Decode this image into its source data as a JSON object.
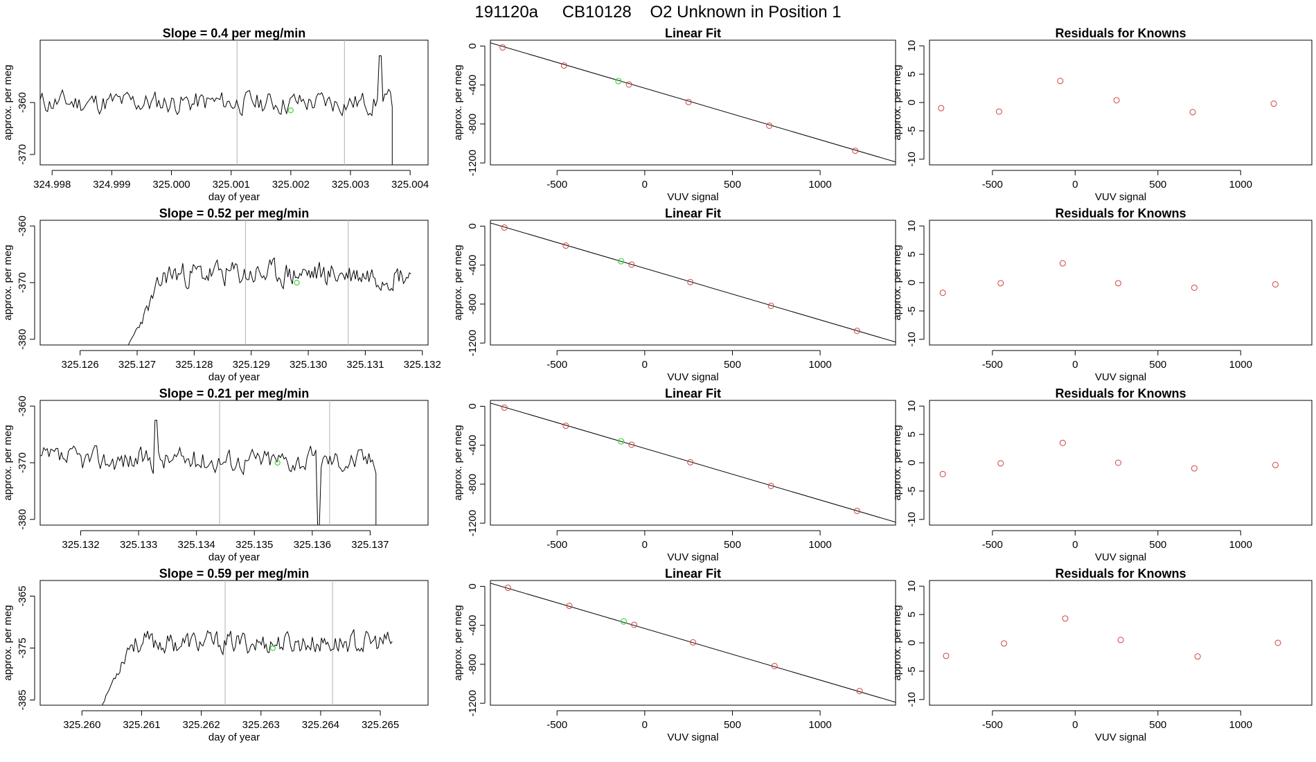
{
  "title": {
    "run_id": "191120a",
    "cylinder": "CB10128",
    "description": "O2 Unknown in Position  1"
  },
  "chart_data": [
    {
      "type": "line",
      "title": "Slope =  0.4  per meg/min",
      "xlabel": "day of year",
      "ylabel": "approx. per meg",
      "xlim": [
        324.9978,
        325.0043
      ],
      "ylim": [
        -372,
        -348
      ],
      "x_ticks": [
        324.998,
        324.999,
        325.0,
        325.001,
        325.002,
        325.003,
        325.004
      ],
      "x_tick_labels": [
        "324.998",
        "324.999",
        "325.000",
        "325.001",
        "325.002",
        "325.003",
        "325.004"
      ],
      "y_ticks": [
        -360,
        -370
      ],
      "y_tick_labels": [
        "-360",
        "-370"
      ],
      "vlines": [
        325.0011,
        325.0029
      ],
      "highlight_point": {
        "x": 325.002,
        "y": -361.5
      },
      "trace_start": 324.9978,
      "trace_end": 325.0037,
      "trace_mean": -360,
      "trace_noise": 2.5,
      "trace_seed": 11,
      "spikes": [
        {
          "x": 325.0035,
          "y": -351
        }
      ],
      "tail_drop": {
        "x": 325.0037,
        "y": -373
      },
      "rise": null
    },
    {
      "type": "scatter",
      "title": "Linear Fit",
      "xlabel": "VUV signal",
      "ylabel": "approx. per meg",
      "xlim": [
        -880,
        1430
      ],
      "ylim": [
        -1220,
        60
      ],
      "x_ticks": [
        -500,
        0,
        500,
        1000
      ],
      "x_tick_labels": [
        "-500",
        "0",
        "500",
        "1000"
      ],
      "y_ticks": [
        0,
        -400,
        -800,
        -1200
      ],
      "y_tick_labels": [
        "0",
        "-400",
        "-800",
        "-1200"
      ],
      "fit_line": {
        "x": [
          -880,
          1430
        ],
        "y": [
          33,
          -1190
        ]
      },
      "known_points": {
        "x": [
          -810,
          -460,
          -90,
          250,
          710,
          1200
        ],
        "y": [
          -15,
          -200,
          -395,
          -575,
          -818,
          -1075
        ]
      },
      "unknown_point": {
        "x": -150,
        "y": -360
      }
    },
    {
      "type": "scatter",
      "title": "Residuals for Knowns",
      "xlabel": "VUV signal",
      "ylabel": "approx. per meg",
      "xlim": [
        -880,
        1430
      ],
      "ylim": [
        -11,
        11
      ],
      "x_ticks": [
        -500,
        0,
        500,
        1000
      ],
      "x_tick_labels": [
        "-500",
        "0",
        "500",
        "1000"
      ],
      "y_ticks": [
        10,
        5,
        0,
        -5,
        -10
      ],
      "y_tick_labels": [
        "10",
        "5",
        "0",
        "-5",
        "-10"
      ],
      "residual_points": {
        "x": [
          -810,
          -460,
          -90,
          250,
          710,
          1200
        ],
        "y": [
          -1,
          -1.6,
          3.8,
          0.4,
          -1.7,
          -0.2
        ]
      }
    },
    {
      "type": "line",
      "title": "Slope =  0.52  per meg/min",
      "xlabel": "day of year",
      "ylabel": "approx. per meg",
      "xlim": [
        325.1253,
        325.1321
      ],
      "ylim": [
        -381,
        -359
      ],
      "x_ticks": [
        325.126,
        325.127,
        325.128,
        325.129,
        325.13,
        325.131,
        325.132
      ],
      "x_tick_labels": [
        "325.126",
        "325.127",
        "325.128",
        "325.129",
        "325.130",
        "325.131",
        "325.132"
      ],
      "y_ticks": [
        -360,
        -370,
        -380
      ],
      "y_tick_labels": [
        "-360",
        "-370",
        "-380"
      ],
      "vlines": [
        325.1289,
        325.1307
      ],
      "highlight_point": {
        "x": 325.1298,
        "y": -370
      },
      "trace_start": 325.1268,
      "trace_end": 325.1318,
      "trace_mean": -368.5,
      "trace_noise": 2.6,
      "trace_seed": 23,
      "spikes": [],
      "tail_drop": null,
      "rise": {
        "x_end": 325.1275,
        "y_start": -382
      }
    },
    {
      "type": "scatter",
      "title": "Linear Fit",
      "xlabel": "VUV signal",
      "ylabel": "approx. per meg",
      "xlim": [
        -880,
        1430
      ],
      "ylim": [
        -1220,
        60
      ],
      "x_ticks": [
        -500,
        0,
        500,
        1000
      ],
      "x_tick_labels": [
        "-500",
        "0",
        "500",
        "1000"
      ],
      "y_ticks": [
        0,
        -400,
        -800,
        -1200
      ],
      "y_tick_labels": [
        "0",
        "-400",
        "-800",
        "-1200"
      ],
      "fit_line": {
        "x": [
          -880,
          1430
        ],
        "y": [
          33,
          -1190
        ]
      },
      "known_points": {
        "x": [
          -800,
          -450,
          -75,
          260,
          720,
          1210
        ],
        "y": [
          -15,
          -200,
          -395,
          -575,
          -818,
          -1075
        ]
      },
      "unknown_point": {
        "x": -135,
        "y": -360
      }
    },
    {
      "type": "scatter",
      "title": "Residuals for Knowns",
      "xlabel": "VUV signal",
      "ylabel": "approx. per meg",
      "xlim": [
        -880,
        1430
      ],
      "ylim": [
        -11,
        11
      ],
      "x_ticks": [
        -500,
        0,
        500,
        1000
      ],
      "x_tick_labels": [
        "-500",
        "0",
        "500",
        "1000"
      ],
      "y_ticks": [
        10,
        5,
        0,
        -5,
        -10
      ],
      "y_tick_labels": [
        "10",
        "5",
        "0",
        "-5",
        "-10"
      ],
      "residual_points": {
        "x": [
          -800,
          -450,
          -75,
          260,
          720,
          1210
        ],
        "y": [
          -1.8,
          -0.1,
          3.4,
          -0.1,
          -0.9,
          -0.3
        ]
      }
    },
    {
      "type": "line",
      "title": "Slope =  0.21  per meg/min",
      "xlabel": "day of year",
      "ylabel": "approx. per meg",
      "xlim": [
        325.1313,
        325.138
      ],
      "ylim": [
        -381,
        -359
      ],
      "x_ticks": [
        325.132,
        325.133,
        325.134,
        325.135,
        325.136,
        325.137
      ],
      "x_tick_labels": [
        "325.132",
        "325.133",
        "325.134",
        "325.135",
        "325.136",
        "325.137"
      ],
      "y_ticks": [
        -360,
        -370,
        -380
      ],
      "y_tick_labels": [
        "-360",
        "-370",
        "-380"
      ],
      "vlines": [
        325.1344,
        325.1363
      ],
      "highlight_point": {
        "x": 325.1354,
        "y": -370
      },
      "trace_start": 325.1313,
      "trace_end": 325.1371,
      "trace_mean": -369.5,
      "trace_noise": 2.4,
      "trace_seed": 37,
      "spikes": [
        {
          "x": 325.1333,
          "y": -362.5
        },
        {
          "x": 325.1361,
          "y": -381
        }
      ],
      "tail_drop": {
        "x": 325.1371,
        "y": -382
      },
      "rise": null
    },
    {
      "type": "scatter",
      "title": "Linear Fit",
      "xlabel": "VUV signal",
      "ylabel": "approx. per meg",
      "xlim": [
        -880,
        1430
      ],
      "ylim": [
        -1220,
        60
      ],
      "x_ticks": [
        -500,
        0,
        500,
        1000
      ],
      "x_tick_labels": [
        "-500",
        "0",
        "500",
        "1000"
      ],
      "y_ticks": [
        0,
        -400,
        -800,
        -1200
      ],
      "y_tick_labels": [
        "0",
        "-400",
        "-800",
        "-1200"
      ],
      "fit_line": {
        "x": [
          -880,
          1430
        ],
        "y": [
          33,
          -1190
        ]
      },
      "known_points": {
        "x": [
          -800,
          -450,
          -75,
          260,
          720,
          1210
        ],
        "y": [
          -15,
          -200,
          -395,
          -575,
          -818,
          -1075
        ]
      },
      "unknown_point": {
        "x": -135,
        "y": -360
      }
    },
    {
      "type": "scatter",
      "title": "Residuals for Knowns",
      "xlabel": "VUV signal",
      "ylabel": "approx. per meg",
      "xlim": [
        -880,
        1430
      ],
      "ylim": [
        -11,
        11
      ],
      "x_ticks": [
        -500,
        0,
        500,
        1000
      ],
      "x_tick_labels": [
        "-500",
        "0",
        "500",
        "1000"
      ],
      "y_ticks": [
        10,
        5,
        0,
        -5,
        -10
      ],
      "y_tick_labels": [
        "10",
        "5",
        "0",
        "-5",
        "-10"
      ],
      "residual_points": {
        "x": [
          -800,
          -450,
          -75,
          260,
          720,
          1210
        ],
        "y": [
          -2,
          -0.1,
          3.5,
          0,
          -1,
          -0.4
        ]
      }
    },
    {
      "type": "line",
      "title": "Slope =  0.59  per meg/min",
      "xlabel": "day of year",
      "ylabel": "approx. per meg",
      "xlim": [
        325.2593,
        325.2658
      ],
      "ylim": [
        -386,
        -362
      ],
      "x_ticks": [
        325.26,
        325.261,
        325.262,
        325.263,
        325.264,
        325.265
      ],
      "x_tick_labels": [
        "325.260",
        "325.261",
        "325.262",
        "325.263",
        "325.264",
        "325.265"
      ],
      "y_ticks": [
        -365,
        -375,
        -385
      ],
      "y_tick_labels": [
        "-365",
        "-375",
        "-385"
      ],
      "vlines": [
        325.2624,
        325.2642
      ],
      "highlight_point": {
        "x": 325.2632,
        "y": -375
      },
      "trace_start": 325.2603,
      "trace_end": 325.2652,
      "trace_mean": -374,
      "trace_noise": 2.4,
      "trace_seed": 53,
      "spikes": [],
      "tail_drop": null,
      "rise": {
        "x_end": 325.2608,
        "y_start": -387
      }
    },
    {
      "type": "scatter",
      "title": "Linear Fit",
      "xlabel": "VUV signal",
      "ylabel": "approx. per meg",
      "xlim": [
        -880,
        1430
      ],
      "ylim": [
        -1220,
        60
      ],
      "x_ticks": [
        -500,
        0,
        500,
        1000
      ],
      "x_tick_labels": [
        "-500",
        "0",
        "500",
        "1000"
      ],
      "y_ticks": [
        0,
        -400,
        -800,
        -1200
      ],
      "y_tick_labels": [
        "0",
        "-400",
        "-800",
        "-1200"
      ],
      "fit_line": {
        "x": [
          -880,
          1430
        ],
        "y": [
          33,
          -1190
        ]
      },
      "known_points": {
        "x": [
          -780,
          -430,
          -60,
          275,
          740,
          1225
        ],
        "y": [
          -15,
          -200,
          -395,
          -575,
          -818,
          -1075
        ]
      },
      "unknown_point": {
        "x": -120,
        "y": -360
      }
    },
    {
      "type": "scatter",
      "title": "Residuals for Knowns",
      "xlabel": "VUV signal",
      "ylabel": "approx. per meg",
      "xlim": [
        -880,
        1430
      ],
      "ylim": [
        -11,
        11
      ],
      "x_ticks": [
        -500,
        0,
        500,
        1000
      ],
      "x_tick_labels": [
        "-500",
        "0",
        "500",
        "1000"
      ],
      "y_ticks": [
        10,
        5,
        0,
        -5,
        -10
      ],
      "y_tick_labels": [
        "10",
        "5",
        "0",
        "-5",
        "-10"
      ],
      "residual_points": {
        "x": [
          -780,
          -430,
          -60,
          275,
          740,
          1225
        ],
        "y": [
          -2.3,
          -0.1,
          4.3,
          0.5,
          -2.4,
          0
        ]
      }
    }
  ]
}
